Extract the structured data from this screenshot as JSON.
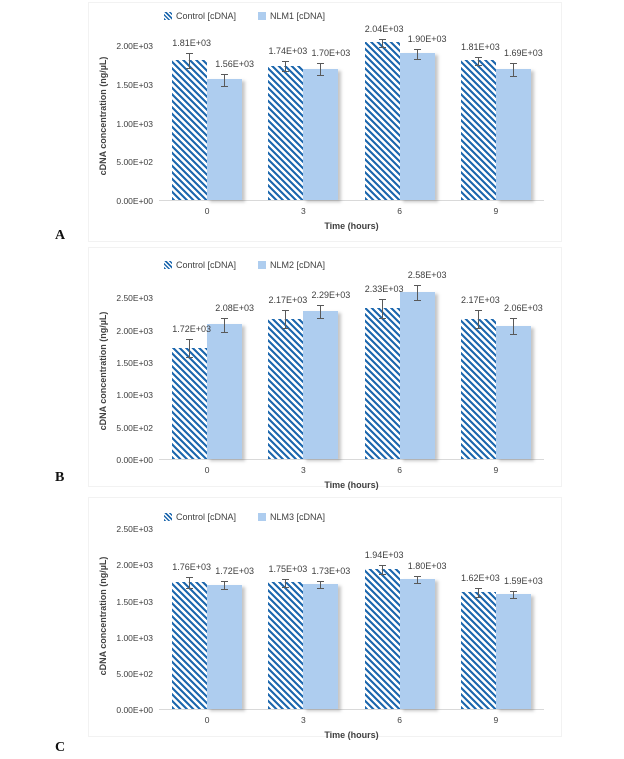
{
  "page": {
    "panel_letters": [
      "A",
      "B",
      "C"
    ]
  },
  "colors": {
    "control_hatch_blue": "#1E68AE",
    "nlm_light_blue": "#AECDEF",
    "error_bar_gray": "#595959",
    "label_text": "#3F3F3F",
    "axis_line": "#D9D9D9"
  },
  "chart_data": [
    {
      "type": "bar",
      "panel_label": "A",
      "title": "",
      "xlabel": "Time (hours)",
      "ylabel": "cDNA concentration (ng/µL)",
      "categories": [
        "0",
        "3",
        "6",
        "9"
      ],
      "y_ticks": [
        "0.00E+00",
        "5.00E+02",
        "1.00E+03",
        "1.50E+03",
        "2.00E+03"
      ],
      "y_tick_values": [
        0,
        500,
        1000,
        1500,
        2000
      ],
      "ylim": [
        0,
        2200
      ],
      "grid": "off",
      "legend_position": "top-left",
      "series": [
        {
          "name": "Control [cDNA]",
          "style": "hatched",
          "values": [
            1810,
            1740,
            2040,
            1810
          ],
          "labels": [
            "1.81E+03",
            "1.74E+03",
            "2.04E+03",
            "1.81E+03"
          ],
          "errors": [
            100,
            70,
            60,
            60
          ]
        },
        {
          "name": "NLM1 [cDNA]",
          "style": "solid",
          "values": [
            1560,
            1700,
            1900,
            1690
          ],
          "labels": [
            "1.56E+03",
            "1.70E+03",
            "1.90E+03",
            "1.69E+03"
          ],
          "errors": [
            90,
            80,
            70,
            90
          ]
        }
      ]
    },
    {
      "type": "bar",
      "panel_label": "B",
      "title": "",
      "xlabel": "Time (hours)",
      "ylabel": "cDNA concentration (ng/µL)",
      "categories": [
        "0",
        "3",
        "6",
        "9"
      ],
      "y_ticks": [
        "0.00E+00",
        "5.00E+02",
        "1.00E+03",
        "1.50E+03",
        "2.00E+03",
        "2.50E+03"
      ],
      "y_tick_values": [
        0,
        500,
        1000,
        1500,
        2000,
        2500
      ],
      "ylim": [
        0,
        2750
      ],
      "grid": "off",
      "legend_position": "top-left",
      "series": [
        {
          "name": "Control [cDNA]",
          "style": "hatched",
          "values": [
            1720,
            2170,
            2330,
            2170
          ],
          "labels": [
            "1.72E+03",
            "2.17E+03",
            "2.33E+03",
            "2.17E+03"
          ],
          "errors": [
            150,
            140,
            150,
            140
          ]
        },
        {
          "name": "NLM2 [cDNA]",
          "style": "solid",
          "values": [
            2080,
            2290,
            2580,
            2060
          ],
          "labels": [
            "2.08E+03",
            "2.29E+03",
            "2.58E+03",
            "2.06E+03"
          ],
          "errors": [
            120,
            110,
            130,
            130
          ]
        }
      ]
    },
    {
      "type": "bar",
      "panel_label": "C",
      "title": "",
      "xlabel": "Time (hours)",
      "ylabel": "cDNA concentration (ng/µL)",
      "categories": [
        "0",
        "3",
        "6",
        "9"
      ],
      "y_ticks": [
        "0.00E+00",
        "5.00E+02",
        "1.00E+03",
        "1.50E+03",
        "2.00E+03",
        "2.50E+03"
      ],
      "y_tick_values": [
        0,
        500,
        1000,
        1500,
        2000,
        2500
      ],
      "ylim": [
        0,
        2600
      ],
      "grid": "off",
      "legend_position": "top-left",
      "series": [
        {
          "name": "Control [cDNA]",
          "style": "hatched",
          "values": [
            1760,
            1750,
            1940,
            1620
          ],
          "labels": [
            "1.76E+03",
            "1.75E+03",
            "1.94E+03",
            "1.62E+03"
          ],
          "errors": [
            80,
            60,
            70,
            70
          ]
        },
        {
          "name": "NLM3 [cDNA]",
          "style": "solid",
          "values": [
            1720,
            1730,
            1800,
            1590
          ],
          "labels": [
            "1.72E+03",
            "1.73E+03",
            "1.80E+03",
            "1.59E+03"
          ],
          "errors": [
            60,
            50,
            55,
            60
          ]
        }
      ]
    }
  ]
}
